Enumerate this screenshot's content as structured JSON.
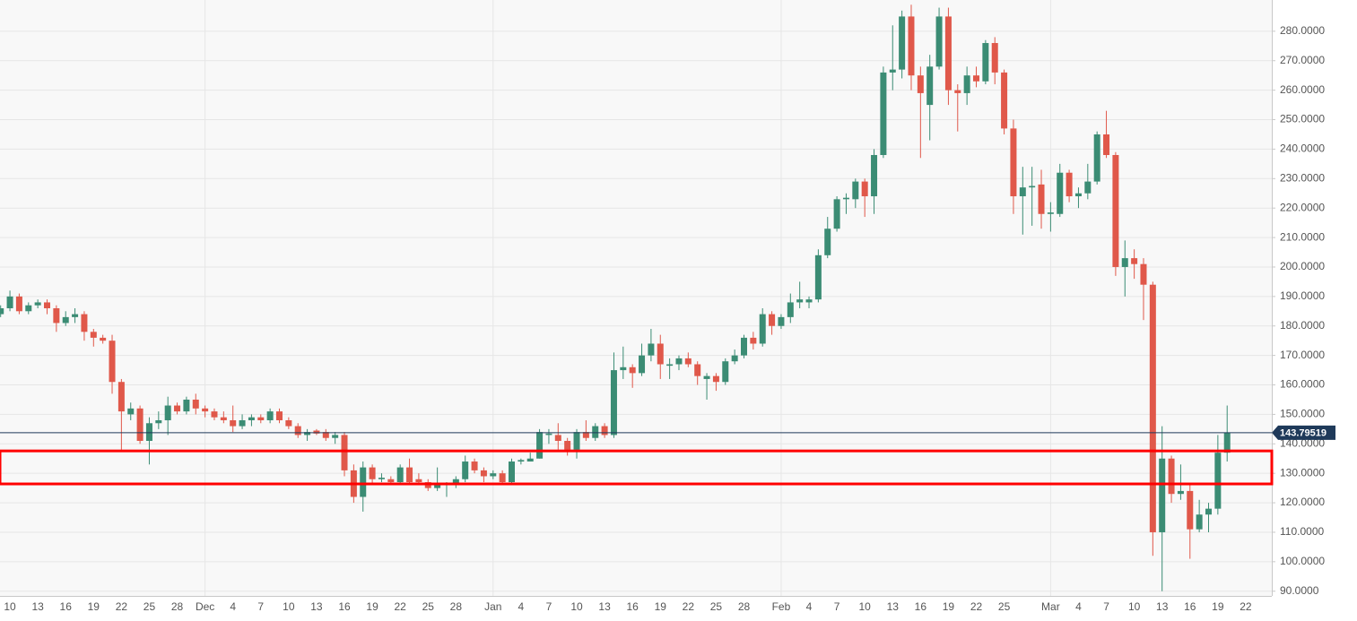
{
  "chart_data": {
    "type": "candlestick",
    "up_color": "#3b8c74",
    "down_color": "#e0584a",
    "last_line_color": "#1f3a5a",
    "zone_color": "#ff0000",
    "ylim": [
      88.4,
      290.6
    ],
    "yticks": [
      {
        "value": 90,
        "label": "90.0000"
      },
      {
        "value": 100,
        "label": "100.0000"
      },
      {
        "value": 110,
        "label": "110.0000"
      },
      {
        "value": 120,
        "label": "120.0000"
      },
      {
        "value": 130,
        "label": "130.0000"
      },
      {
        "value": 140,
        "label": "140.0000"
      },
      {
        "value": 150,
        "label": "150.0000"
      },
      {
        "value": 160,
        "label": "160.0000"
      },
      {
        "value": 170,
        "label": "170.0000"
      },
      {
        "value": 180,
        "label": "180.0000"
      },
      {
        "value": 190,
        "label": "190.0000"
      },
      {
        "value": 200,
        "label": "200.0000"
      },
      {
        "value": 210,
        "label": "210.0000"
      },
      {
        "value": 220,
        "label": "220.0000"
      },
      {
        "value": 230,
        "label": "230.0000"
      },
      {
        "value": 240,
        "label": "240.0000"
      },
      {
        "value": 250,
        "label": "250.0000"
      },
      {
        "value": 260,
        "label": "260.0000"
      },
      {
        "value": 270,
        "label": "270.0000"
      },
      {
        "value": 280,
        "label": "280.0000"
      }
    ],
    "grid": true,
    "month_lines": [
      22,
      53,
      84,
      113
    ],
    "zone": [
      126.4,
      137.6
    ],
    "categories": [
      null,
      "10",
      null,
      null,
      "13",
      null,
      null,
      "16",
      null,
      null,
      "19",
      null,
      null,
      "22",
      null,
      null,
      "25",
      null,
      null,
      "28",
      null,
      null,
      "Dec",
      null,
      null,
      "4",
      null,
      null,
      "7",
      null,
      null,
      "10",
      null,
      null,
      "13",
      null,
      null,
      "16",
      null,
      null,
      "19",
      null,
      null,
      "22",
      null,
      null,
      "25",
      null,
      null,
      "28",
      null,
      null,
      null,
      "Jan",
      null,
      null,
      "4",
      null,
      null,
      "7",
      null,
      null,
      "10",
      null,
      null,
      "13",
      null,
      null,
      "16",
      null,
      null,
      "19",
      null,
      null,
      "22",
      null,
      null,
      "25",
      null,
      null,
      "28",
      null,
      null,
      null,
      "Feb",
      null,
      null,
      "4",
      null,
      null,
      "7",
      null,
      null,
      "10",
      null,
      null,
      "13",
      null,
      null,
      "16",
      null,
      null,
      "19",
      null,
      null,
      "22",
      null,
      null,
      "25",
      null,
      null,
      null,
      null,
      "Mar",
      null,
      null,
      "4",
      null,
      null,
      "7",
      null,
      null,
      "10",
      null,
      null,
      "13",
      null,
      null,
      "16",
      null,
      null,
      "19",
      null,
      null,
      "22"
    ],
    "ohlc": [
      [
        184,
        187,
        183,
        186
      ],
      [
        186,
        192,
        185,
        190
      ],
      [
        190,
        191,
        184,
        185
      ],
      [
        185,
        188,
        184,
        187
      ],
      [
        187,
        189,
        186,
        188
      ],
      [
        188,
        189,
        184,
        186
      ],
      [
        186,
        187,
        178,
        181
      ],
      [
        181,
        185,
        180,
        183
      ],
      [
        183,
        186,
        181,
        184
      ],
      [
        184,
        185,
        175,
        178
      ],
      [
        178,
        179,
        173,
        176
      ],
      [
        176,
        177,
        174,
        175
      ],
      [
        175,
        177,
        157,
        161
      ],
      [
        161,
        162,
        138,
        151
      ],
      [
        150,
        154,
        148,
        152
      ],
      [
        152,
        153,
        140,
        141
      ],
      [
        141,
        149,
        133,
        147
      ],
      [
        147,
        151,
        145,
        148
      ],
      [
        148,
        156,
        143,
        153
      ],
      [
        153,
        154,
        150,
        151
      ],
      [
        151,
        156,
        150,
        155
      ],
      [
        155,
        157,
        150,
        152
      ],
      [
        152,
        153,
        149,
        151
      ],
      [
        151,
        152,
        148,
        149
      ],
      [
        149,
        151,
        147,
        148
      ],
      [
        148,
        153,
        144,
        146
      ],
      [
        146,
        150,
        145,
        148
      ],
      [
        148,
        150,
        146,
        149
      ],
      [
        149,
        150,
        147,
        148
      ],
      [
        148,
        152,
        147,
        151
      ],
      [
        151,
        152,
        147,
        148
      ],
      [
        148,
        149,
        145,
        146
      ],
      [
        146,
        147,
        142,
        143
      ],
      [
        143,
        145,
        141,
        144
      ],
      [
        144.5,
        145,
        143,
        143.5
      ],
      [
        144,
        145,
        141,
        142
      ],
      [
        142,
        144,
        140,
        143
      ],
      [
        143,
        144,
        129,
        131
      ],
      [
        131,
        133,
        120,
        122
      ],
      [
        122,
        134,
        117,
        132
      ],
      [
        132,
        133,
        126,
        128
      ],
      [
        128,
        130,
        127,
        128.5
      ],
      [
        128,
        129,
        126,
        127
      ],
      [
        127,
        133,
        126,
        132
      ],
      [
        132,
        135,
        126,
        127
      ],
      [
        128,
        130,
        126,
        127
      ],
      [
        127,
        128,
        124,
        125
      ],
      [
        125,
        132,
        124,
        126
      ],
      [
        126,
        127,
        122,
        126.5
      ],
      [
        126,
        129,
        125,
        128
      ],
      [
        128,
        136,
        127,
        134
      ],
      [
        134,
        135,
        130,
        131
      ],
      [
        131,
        132,
        127,
        129
      ],
      [
        129,
        131,
        128,
        130
      ],
      [
        130,
        131,
        126,
        127
      ],
      [
        127,
        135,
        126,
        134
      ],
      [
        134,
        135,
        133,
        134.5
      ],
      [
        134,
        137,
        134,
        135
      ],
      [
        135,
        145,
        135,
        144
      ],
      [
        143,
        145,
        140,
        143.5
      ],
      [
        143,
        147,
        138,
        141
      ],
      [
        141,
        142,
        136,
        138
      ],
      [
        138,
        145,
        135,
        144
      ],
      [
        144,
        148,
        141,
        142
      ],
      [
        142,
        147,
        141,
        146
      ],
      [
        146,
        147,
        142,
        143
      ],
      [
        143,
        171,
        142,
        165
      ],
      [
        165,
        173,
        162,
        166
      ],
      [
        166,
        167,
        159,
        164
      ],
      [
        164,
        174,
        163,
        170
      ],
      [
        170,
        179,
        168,
        174
      ],
      [
        174,
        177,
        162,
        167
      ],
      [
        166.5,
        169,
        162,
        167
      ],
      [
        167,
        170,
        165,
        169
      ],
      [
        169,
        171,
        166,
        167
      ],
      [
        167,
        168,
        160,
        163
      ],
      [
        162,
        164,
        155,
        163
      ],
      [
        163,
        164,
        158,
        161
      ],
      [
        161,
        169,
        160,
        168
      ],
      [
        168,
        172,
        167,
        170
      ],
      [
        170,
        177,
        169,
        176
      ],
      [
        176,
        178,
        172,
        174
      ],
      [
        174,
        186,
        173,
        184
      ],
      [
        184,
        185,
        177,
        180
      ],
      [
        180,
        184,
        179,
        183
      ],
      [
        183,
        191,
        181,
        188
      ],
      [
        188,
        195,
        186,
        189
      ],
      [
        188,
        190,
        186,
        189
      ],
      [
        189,
        206,
        188,
        204
      ],
      [
        204,
        217,
        203,
        213
      ],
      [
        213,
        224,
        212,
        223
      ],
      [
        223,
        225,
        218,
        223.5
      ],
      [
        223,
        230,
        220,
        229
      ],
      [
        229,
        230,
        217,
        224
      ],
      [
        224,
        240,
        218,
        238
      ],
      [
        238,
        268,
        237,
        266
      ],
      [
        266,
        282,
        260,
        267
      ],
      [
        267,
        287,
        264,
        285
      ],
      [
        285,
        289,
        260,
        265
      ],
      [
        265,
        268,
        237,
        259
      ],
      [
        255,
        272,
        243,
        268
      ],
      [
        268,
        288,
        267,
        285
      ],
      [
        285,
        288,
        255,
        260
      ],
      [
        260,
        262,
        246,
        259
      ],
      [
        259,
        268,
        255,
        265
      ],
      [
        265,
        268,
        261,
        263
      ],
      [
        263,
        277,
        262,
        276
      ],
      [
        276,
        278,
        262,
        266
      ],
      [
        266,
        267,
        245,
        247
      ],
      [
        247,
        250,
        218,
        224
      ],
      [
        224,
        234,
        211,
        227
      ],
      [
        227,
        234,
        214,
        227.5
      ],
      [
        228,
        233,
        213,
        218
      ],
      [
        218,
        222,
        212,
        218.5
      ],
      [
        218,
        235,
        217,
        232
      ],
      [
        232,
        233,
        222,
        224
      ],
      [
        224,
        227,
        220,
        225
      ],
      [
        225,
        235,
        223,
        229
      ],
      [
        229,
        246,
        228,
        245
      ],
      [
        245,
        253,
        237,
        238
      ],
      [
        238,
        239,
        197,
        200
      ],
      [
        200,
        209,
        190,
        203
      ],
      [
        203,
        206,
        196,
        201
      ],
      [
        201,
        203,
        182,
        194
      ],
      [
        194,
        195,
        102,
        110
      ],
      [
        110,
        146,
        90,
        135
      ],
      [
        135,
        136,
        120,
        123
      ],
      [
        123,
        133,
        121,
        124
      ],
      [
        124,
        126,
        101,
        111
      ],
      [
        111,
        121,
        110,
        116
      ],
      [
        116,
        120,
        110,
        118
      ],
      [
        118,
        143,
        116,
        137
      ],
      [
        137,
        153,
        134,
        143.79519
      ],
      null,
      null
    ]
  }
}
